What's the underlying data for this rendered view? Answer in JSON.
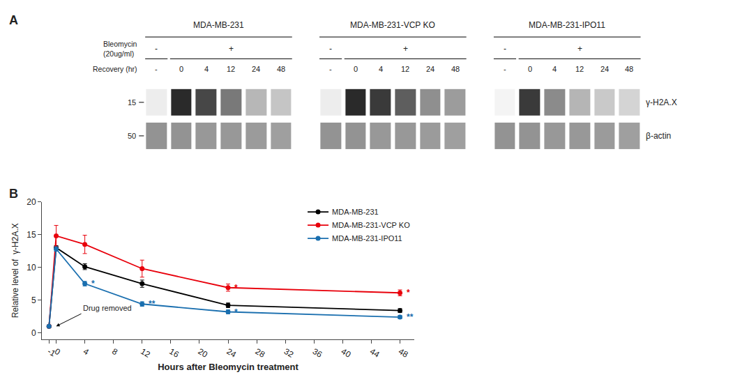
{
  "chart_data": [
    {
      "type": "blot",
      "label": "A",
      "categories": [
        "MDA-MB-231",
        "MDA-MB-231-VCP KO",
        "MDA-MB-231-IPO11"
      ],
      "treatment": {
        "name": [
          "Bleomycin",
          "(20ug/ml)"
        ],
        "marks": [
          "-",
          "+"
        ]
      },
      "lanes_label": "Recovery (hr)",
      "lanes": [
        "-",
        "0",
        "4",
        "12",
        "24",
        "48"
      ],
      "series": [
        {
          "name": "γ-H2A.X",
          "weight": 15,
          "values": [
            [
              0.08,
              0.95,
              0.82,
              0.6,
              0.32,
              0.26
            ],
            [
              0.08,
              0.95,
              0.88,
              0.72,
              0.5,
              0.44
            ],
            [
              0.05,
              0.88,
              0.52,
              0.33,
              0.24,
              0.19
            ]
          ]
        },
        {
          "name": "β-actin",
          "weight": 50,
          "values": [
            [
              0.65,
              0.65,
              0.62,
              0.62,
              0.6,
              0.58
            ],
            [
              0.65,
              0.65,
              0.62,
              0.62,
              0.6,
              0.58
            ],
            [
              0.65,
              0.65,
              0.62,
              0.62,
              0.6,
              0.58
            ]
          ]
        }
      ]
    },
    {
      "type": "line",
      "label": "B",
      "x": [
        -1,
        0,
        4,
        12,
        24,
        48
      ],
      "xlim": [
        -2,
        50
      ],
      "xticks": [
        -1,
        0,
        4,
        8,
        12,
        16,
        20,
        24,
        28,
        32,
        36,
        40,
        44,
        48
      ],
      "ylim": [
        -1,
        20
      ],
      "yticks": [
        0,
        5,
        10,
        15,
        20
      ],
      "xlabel": "Hours after Bleomycin treatment",
      "ylabel": "Relative level of  γ-H2A.X",
      "grid": false,
      "legend": "upper right",
      "marker": "circle",
      "line_style": "solid",
      "annotation": {
        "text": "Drug removed",
        "x": 0,
        "y": 1.0
      },
      "series": [
        {
          "name": "MDA-MB-231",
          "color": "#000000",
          "values": [
            1.0,
            13.0,
            10.1,
            7.5,
            4.2,
            3.4
          ],
          "errors": [
            0.15,
            0.3,
            0.45,
            0.55,
            0.35,
            0.3
          ],
          "significance": [
            null,
            null,
            null,
            null,
            null,
            null
          ]
        },
        {
          "name": "MDA-MB-231-VCP KO",
          "color": "#e8000b",
          "values": [
            1.0,
            14.8,
            13.5,
            9.8,
            6.9,
            6.1
          ],
          "errors": [
            0.15,
            1.6,
            1.4,
            1.3,
            0.55,
            0.45
          ],
          "significance": [
            null,
            null,
            null,
            null,
            "*",
            "*"
          ]
        },
        {
          "name": "MDA-MB-231-IPO11",
          "color": "#1a6faf",
          "values": [
            1.0,
            12.8,
            7.5,
            4.4,
            3.2,
            2.4
          ],
          "errors": [
            0.1,
            0.35,
            0.35,
            0.35,
            0.3,
            0.25
          ],
          "significance": [
            null,
            null,
            "*",
            "**",
            "*",
            "**"
          ]
        }
      ]
    }
  ]
}
